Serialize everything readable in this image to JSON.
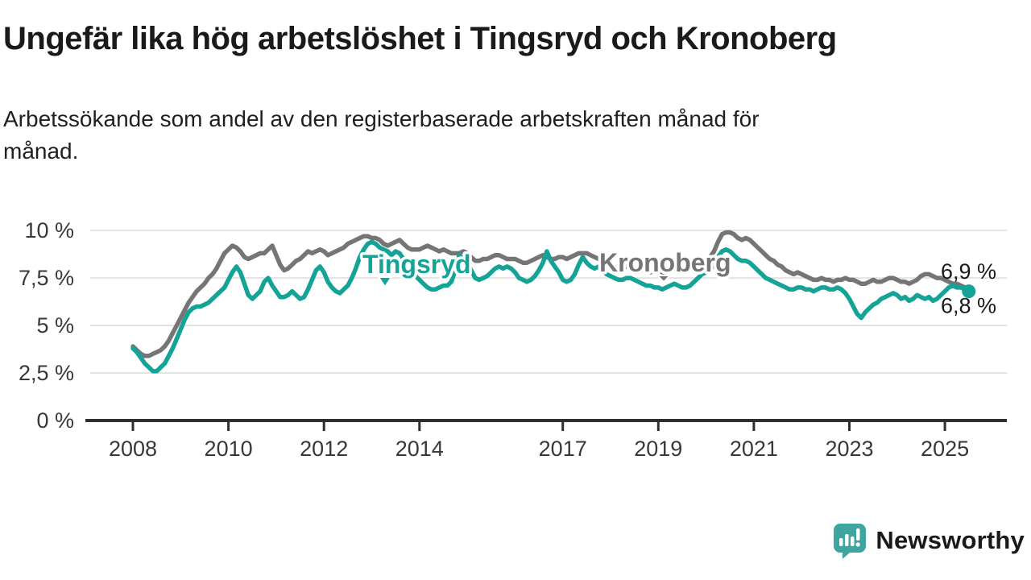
{
  "header": {
    "title": "Ungefär lika hög arbetslöshet i Tingsryd och Kronoberg",
    "subtitle": "Arbetssökande som andel av den registerbaserade arbetskraften månad för månad.",
    "subtitle_line1": "Arbetssökande som andel av den registerbaserade arbetskraften månad för",
    "subtitle_line2": "månad."
  },
  "branding": {
    "name": "Newsworthy",
    "logo_icon": "bar-chart-speech-bubble",
    "color": "#3FA5A0"
  },
  "colors": {
    "tingsryd": "#14A396",
    "kronoberg": "#757575",
    "grid": "#e3e3e3",
    "axis": "#2f2f2f",
    "text": "#383838"
  },
  "chart_data": {
    "type": "line",
    "unit": "%",
    "start_month": "2008-01",
    "end_month": "2025-07",
    "x_ticks": [
      2008,
      2010,
      2012,
      2014,
      2017,
      2019,
      2021,
      2023,
      2025
    ],
    "y_ticks": [
      {
        "value": 10,
        "label": "10 %"
      },
      {
        "value": 7.5,
        "label": "7,5 %"
      },
      {
        "value": 5,
        "label": "5 %"
      },
      {
        "value": 2.5,
        "label": "2,5 %"
      },
      {
        "value": 0,
        "label": "0 %"
      }
    ],
    "ylim": [
      0,
      10.5
    ],
    "grid": true,
    "series": [
      {
        "name": "Kronoberg",
        "color": "#757575",
        "end_label": "6,9 %",
        "end_value": 6.9,
        "marker_end": false,
        "values": [
          3.9,
          3.7,
          3.5,
          3.4,
          3.4,
          3.5,
          3.6,
          3.7,
          3.9,
          4.2,
          4.6,
          5.0,
          5.4,
          5.8,
          6.2,
          6.5,
          6.8,
          7.0,
          7.2,
          7.5,
          7.7,
          8.0,
          8.4,
          8.8,
          9.0,
          9.2,
          9.1,
          8.9,
          8.6,
          8.5,
          8.6,
          8.7,
          8.8,
          8.8,
          9.0,
          9.2,
          8.7,
          8.2,
          7.9,
          8.0,
          8.2,
          8.4,
          8.5,
          8.7,
          8.9,
          8.8,
          8.9,
          9.0,
          8.9,
          8.7,
          8.8,
          8.9,
          9.0,
          9.1,
          9.3,
          9.4,
          9.5,
          9.6,
          9.7,
          9.7,
          9.6,
          9.6,
          9.5,
          9.3,
          9.2,
          9.3,
          9.4,
          9.5,
          9.3,
          9.1,
          9.0,
          9.0,
          9.0,
          9.1,
          9.2,
          9.1,
          9.0,
          8.9,
          9.0,
          8.9,
          8.8,
          8.8,
          8.8,
          8.9,
          8.8,
          8.6,
          8.4,
          8.4,
          8.5,
          8.5,
          8.6,
          8.7,
          8.7,
          8.6,
          8.5,
          8.5,
          8.5,
          8.4,
          8.3,
          8.3,
          8.4,
          8.5,
          8.6,
          8.7,
          8.6,
          8.5,
          8.5,
          8.6,
          8.6,
          8.5,
          8.6,
          8.7,
          8.8,
          8.8,
          8.8,
          8.7,
          8.6,
          8.5,
          8.4,
          8.3,
          8.2,
          8.1,
          8.0,
          8.0,
          8.1,
          8.1,
          8.0,
          8.0,
          7.9,
          7.9,
          7.8,
          7.9,
          7.9,
          7.8,
          7.8,
          7.9,
          8.0,
          8.0,
          8.1,
          8.1,
          8.2,
          8.2,
          8.3,
          8.4,
          8.5,
          8.6,
          8.9,
          9.4,
          9.8,
          9.9,
          9.9,
          9.8,
          9.6,
          9.5,
          9.6,
          9.5,
          9.3,
          9.1,
          8.9,
          8.7,
          8.5,
          8.4,
          8.2,
          8.1,
          7.9,
          7.8,
          7.7,
          7.8,
          7.7,
          7.6,
          7.5,
          7.4,
          7.4,
          7.5,
          7.4,
          7.4,
          7.3,
          7.4,
          7.4,
          7.5,
          7.4,
          7.4,
          7.3,
          7.2,
          7.2,
          7.3,
          7.4,
          7.3,
          7.3,
          7.4,
          7.5,
          7.5,
          7.4,
          7.3,
          7.3,
          7.2,
          7.3,
          7.4,
          7.6,
          7.7,
          7.7,
          7.6,
          7.5,
          7.5,
          7.4,
          7.3,
          7.2,
          7.2,
          7.1,
          7.0,
          6.9
        ]
      },
      {
        "name": "Tingsryd",
        "color": "#14A396",
        "end_label": "6,8 %",
        "end_value": 6.8,
        "marker_end": true,
        "values": [
          3.8,
          3.6,
          3.3,
          3.0,
          2.8,
          2.6,
          2.6,
          2.8,
          3.0,
          3.4,
          3.8,
          4.3,
          4.8,
          5.3,
          5.7,
          5.9,
          6.0,
          6.0,
          6.1,
          6.2,
          6.4,
          6.6,
          6.8,
          7.0,
          7.4,
          7.8,
          8.1,
          7.8,
          7.2,
          6.6,
          6.4,
          6.6,
          6.8,
          7.3,
          7.5,
          7.1,
          6.8,
          6.5,
          6.5,
          6.6,
          6.8,
          6.6,
          6.4,
          6.5,
          6.9,
          7.4,
          7.9,
          8.1,
          7.8,
          7.3,
          7.0,
          6.8,
          6.7,
          6.9,
          7.1,
          7.5,
          8.0,
          8.6,
          9.0,
          9.3,
          9.4,
          9.3,
          9.1,
          9.0,
          8.9,
          8.7,
          8.9,
          8.8,
          8.5,
          8.2,
          7.9,
          7.6,
          7.4,
          7.2,
          7.0,
          6.9,
          6.9,
          7.0,
          7.1,
          7.1,
          7.3,
          7.9,
          8.7,
          8.5,
          8.3,
          7.9,
          7.5,
          7.4,
          7.5,
          7.6,
          7.8,
          8.0,
          8.1,
          8.0,
          8.1,
          8.0,
          7.8,
          7.5,
          7.4,
          7.3,
          7.4,
          7.6,
          7.9,
          8.3,
          8.9,
          8.4,
          8.1,
          7.8,
          7.4,
          7.3,
          7.4,
          7.7,
          8.2,
          8.6,
          8.3,
          8.1,
          8.0,
          8.1,
          7.9,
          7.7,
          7.6,
          7.5,
          7.4,
          7.4,
          7.5,
          7.5,
          7.4,
          7.3,
          7.2,
          7.1,
          7.1,
          7.0,
          7.0,
          6.9,
          7.0,
          7.1,
          7.2,
          7.1,
          7.0,
          7.0,
          7.1,
          7.3,
          7.5,
          7.7,
          7.8,
          7.9,
          8.2,
          8.6,
          8.9,
          9.0,
          8.9,
          8.7,
          8.5,
          8.4,
          8.4,
          8.3,
          8.1,
          7.9,
          7.7,
          7.5,
          7.4,
          7.3,
          7.2,
          7.1,
          7.0,
          6.9,
          6.9,
          7.0,
          7.0,
          6.9,
          6.9,
          6.8,
          6.9,
          7.0,
          7.0,
          6.9,
          6.9,
          7.0,
          6.9,
          6.7,
          6.4,
          6.0,
          5.6,
          5.4,
          5.7,
          5.9,
          6.1,
          6.2,
          6.4,
          6.5,
          6.6,
          6.7,
          6.6,
          6.4,
          6.5,
          6.3,
          6.4,
          6.6,
          6.5,
          6.4,
          6.5,
          6.3,
          6.4,
          6.6,
          6.8,
          7.0,
          7.1,
          7.0,
          7.0,
          6.9,
          6.8
        ]
      }
    ]
  }
}
